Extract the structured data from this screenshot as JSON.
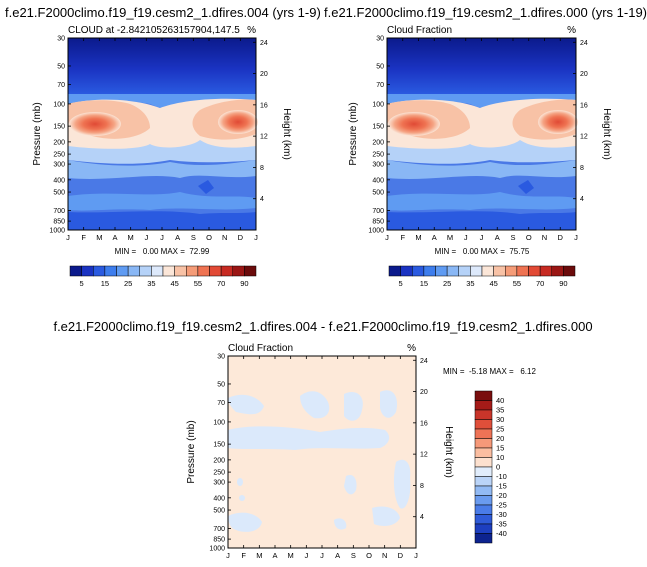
{
  "chart_data": [
    {
      "type": "heatmap",
      "title": "f.e21.F2000climo.f19_f19.cesm2_1.dfires.004 (yrs 1-9)",
      "left_label": "CLOUD at -2.842105263157904,147.5",
      "right_label": "%",
      "ylabel": "Pressure (mb)",
      "ylabel_right": "Height (km)",
      "x_ticks": [
        "J",
        "F",
        "M",
        "A",
        "M",
        "J",
        "J",
        "A",
        "S",
        "O",
        "N",
        "D",
        "J"
      ],
      "y_ticks": [
        "30",
        "50",
        "70",
        "100",
        "150",
        "200",
        "250",
        "300",
        "400",
        "500",
        "700",
        "850",
        "1000"
      ],
      "y_ticks_right": [
        "24",
        "20",
        "16",
        "12",
        "8",
        "4"
      ],
      "stats": "MIN =   0.00 MAX =  72.99",
      "min": 0.0,
      "max": 72.99
    },
    {
      "type": "heatmap",
      "title": "f.e21.F2000climo.f19_f19.cesm2_1.dfires.000 (yrs 1-19)",
      "left_label": "Cloud Fraction",
      "right_label": "%",
      "ylabel": "Pressure (mb)",
      "ylabel_right": "Height (km)",
      "x_ticks": [
        "J",
        "F",
        "M",
        "A",
        "M",
        "J",
        "J",
        "A",
        "S",
        "O",
        "N",
        "D",
        "J"
      ],
      "y_ticks": [
        "30",
        "50",
        "70",
        "100",
        "150",
        "200",
        "250",
        "300",
        "400",
        "500",
        "700",
        "850",
        "1000"
      ],
      "y_ticks_right": [
        "24",
        "20",
        "16",
        "12",
        "8",
        "4"
      ],
      "stats": "MIN =   0.00 MAX =  75.75",
      "min": 0.0,
      "max": 75.75
    },
    {
      "type": "heatmap",
      "title": "f.e21.F2000climo.f19_f19.cesm2_1.dfires.004 - f.e21.F2000climo.f19_f19.cesm2_1.dfires.000",
      "left_label": "Cloud Fraction",
      "right_label": "%",
      "ylabel": "Pressure (mb)",
      "ylabel_right": "Height (km)",
      "x_ticks": [
        "J",
        "F",
        "M",
        "A",
        "M",
        "J",
        "J",
        "A",
        "S",
        "O",
        "N",
        "D",
        "J"
      ],
      "y_ticks": [
        "30",
        "50",
        "70",
        "100",
        "150",
        "200",
        "250",
        "300",
        "400",
        "500",
        "700",
        "850",
        "1000"
      ],
      "y_ticks_right": [
        "24",
        "20",
        "16",
        "12",
        "8",
        "4"
      ],
      "stats": "MIN =  -5.18 MAX =   6.12",
      "min": -5.18,
      "max": 6.12
    }
  ],
  "colorbar_abs": {
    "labels": [
      "5",
      "15",
      "25",
      "35",
      "45",
      "55",
      "70",
      "90"
    ],
    "colors": [
      "#0b1a8c",
      "#1a33c2",
      "#2a5ae0",
      "#3d7ded",
      "#5f9bf2",
      "#89b7f5",
      "#b5d2f8",
      "#dde9fb",
      "#fbe6d8",
      "#f8c2a6",
      "#f59c78",
      "#ef7352",
      "#e24a35",
      "#c72a22",
      "#9a1614",
      "#6b0b0b"
    ]
  },
  "colorbar_diff": {
    "labels": [
      "40",
      "35",
      "30",
      "25",
      "20",
      "15",
      "10",
      "0",
      "-10",
      "-15",
      "-20",
      "-25",
      "-30",
      "-35",
      "-40"
    ],
    "colors": [
      "#7a0e0e",
      "#a51b18",
      "#c9352a",
      "#e04f3a",
      "#ee7356",
      "#f69979",
      "#fbbea1",
      "#fde1cf",
      "#e1edfc",
      "#bad4f8",
      "#92baf4",
      "#6a9bef",
      "#4a7ce8",
      "#2f5bd8",
      "#1d3fc0",
      "#0d238f"
    ]
  },
  "colors": {
    "deep_blue": "#0b1a8c",
    "pale_orange": "#fde9d9",
    "pale_blue": "#dbe9fb"
  }
}
